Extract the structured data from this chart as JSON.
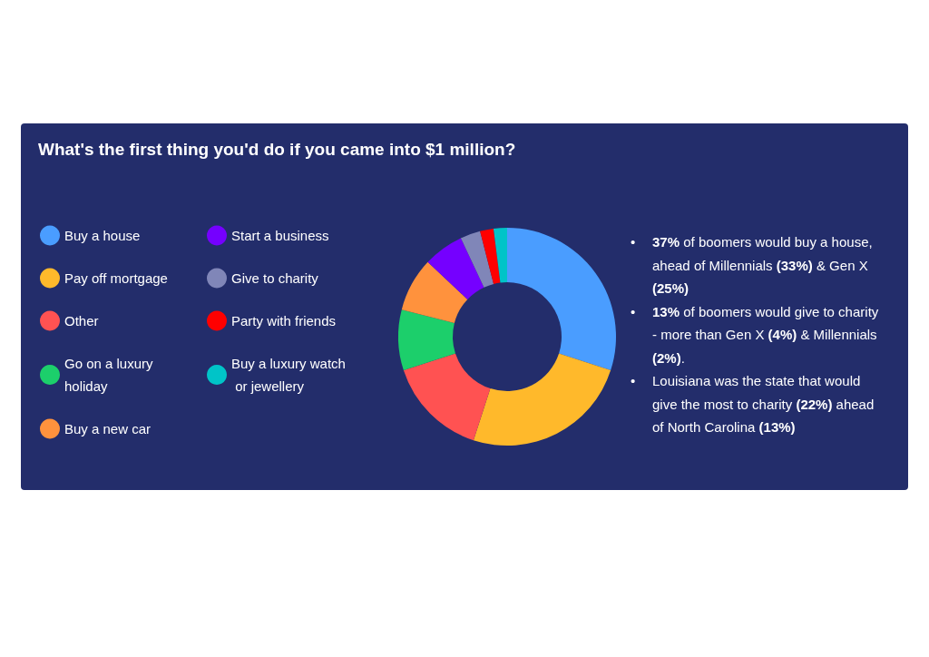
{
  "chart_data": {
    "type": "donut",
    "title": "What's the first thing you'd do if you came into $1 million?",
    "categories": [
      "Buy a house",
      "Pay off mortgage",
      "Other",
      "Go on a luxury holiday",
      "Buy a new car",
      "Start a business",
      "Give to charity",
      "Party with friends",
      "Buy a luxury watch or jewellery"
    ],
    "values": [
      30,
      25,
      15,
      9,
      8,
      6,
      3,
      2,
      2
    ],
    "colors": [
      "#4a9dff",
      "#ffb92b",
      "#ff5252",
      "#1ccf6b",
      "#ff923d",
      "#7500ff",
      "#8086b8",
      "#ff0000",
      "#00c4c8"
    ],
    "legend": "left",
    "annotations": [
      "• 37% of boomers would buy a house, ahead of Millennials (33%) & Gen X (25%)",
      "• 13% of boomers would give to charity - more than Gen X (4%) & Millennials (2%).",
      "• Louisiana was the state that would give the most to charity (22%) ahead of North Carolina (13%)"
    ]
  }
}
